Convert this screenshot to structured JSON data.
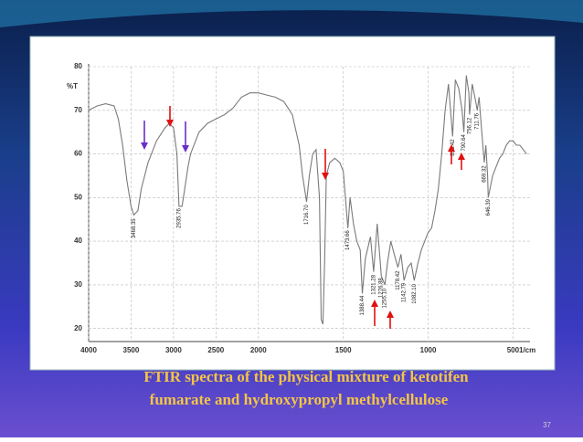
{
  "chart_data": {
    "type": "line",
    "ylabel": "%T",
    "xlabel": "1/cm",
    "xlim": [
      4000,
      400
    ],
    "ylim": [
      17,
      80
    ],
    "xscale_break": 2000,
    "xticks": [
      4000,
      3500,
      3000,
      2500,
      2000,
      1500,
      1000,
      500
    ],
    "yticks": [
      20,
      30,
      40,
      50,
      60,
      70,
      80
    ],
    "grid": true,
    "color": "#7a7a7a",
    "x": [
      4000,
      3900,
      3800,
      3700,
      3650,
      3600,
      3550,
      3500,
      3468,
      3420,
      3380,
      3300,
      3200,
      3100,
      3050,
      3000,
      2960,
      2935,
      2900,
      2860,
      2830,
      2800,
      2700,
      2600,
      2500,
      2400,
      2300,
      2200,
      2100,
      2000,
      1950,
      1900,
      1850,
      1800,
      1760,
      1740,
      1716,
      1700,
      1680,
      1660,
      1640,
      1630,
      1620,
      1610,
      1600,
      1580,
      1550,
      1520,
      1500,
      1473,
      1460,
      1440,
      1420,
      1400,
      1388,
      1370,
      1340,
      1321,
      1300,
      1276,
      1255,
      1240,
      1220,
      1200,
      1178,
      1160,
      1142,
      1120,
      1100,
      1082,
      1060,
      1040,
      1020,
      1000,
      980,
      960,
      940,
      920,
      900,
      880,
      856,
      840,
      820,
      800,
      790,
      775,
      760,
      756,
      740,
      720,
      711,
      700,
      690,
      680,
      669,
      660,
      650,
      646,
      620,
      600,
      580,
      560,
      540,
      520,
      500,
      480,
      460,
      440,
      420
    ],
    "values": [
      70,
      71,
      71.5,
      71,
      68,
      62,
      54,
      48,
      46,
      47,
      52,
      58,
      63,
      66,
      67,
      66,
      60,
      48,
      48,
      53,
      57,
      60,
      65,
      67,
      68,
      69,
      70.5,
      73,
      74,
      74,
      73.5,
      73,
      72,
      69,
      62,
      55,
      49,
      55,
      60,
      61,
      50,
      22,
      21,
      35,
      55,
      58,
      59,
      58,
      56,
      43,
      50,
      44,
      40,
      38,
      28,
      36,
      41,
      33,
      44,
      32,
      30,
      35,
      40,
      37,
      34,
      37,
      31,
      34,
      35,
      31,
      35,
      38,
      40,
      42,
      43,
      47,
      52,
      60,
      70,
      76,
      64,
      77,
      75,
      70,
      65,
      78,
      74,
      69,
      76,
      72,
      70,
      73,
      68,
      63,
      58,
      62,
      55,
      50,
      55,
      57,
      59,
      60,
      62,
      63,
      63,
      62,
      62,
      61,
      60
    ],
    "peak_labels": [
      {
        "value": 3468.35,
        "label": "3468.35"
      },
      {
        "value": 2935.76,
        "label": "2935.76"
      },
      {
        "value": 1716.7,
        "label": "1716.70"
      },
      {
        "value": 1473.66,
        "label": "1473.66"
      },
      {
        "value": 1388.44,
        "label": "1388.44"
      },
      {
        "value": 1321.28,
        "label": "1321.28"
      },
      {
        "value": 1276.88,
        "label": "1276.88"
      },
      {
        "value": 1255.1,
        "label": "1255.10"
      },
      {
        "value": 1178.42,
        "label": "1178.42"
      },
      {
        "value": 1142.79,
        "label": "1142.79"
      },
      {
        "value": 1082.1,
        "label": "1082.10"
      },
      {
        "value": 856.42,
        "label": "856.42"
      },
      {
        "value": 790.64,
        "label": "790.64"
      },
      {
        "value": 756.12,
        "label": "756.12"
      },
      {
        "value": 711.76,
        "label": "711.76"
      },
      {
        "value": 669.32,
        "label": "669.32"
      },
      {
        "value": 646.39,
        "label": "646.39"
      }
    ],
    "caption": [
      "FTIR spectra of the physical mixture of ketotifen",
      "fumarate and hydroxypropyl methylcellulose"
    ],
    "page_number": "37"
  }
}
